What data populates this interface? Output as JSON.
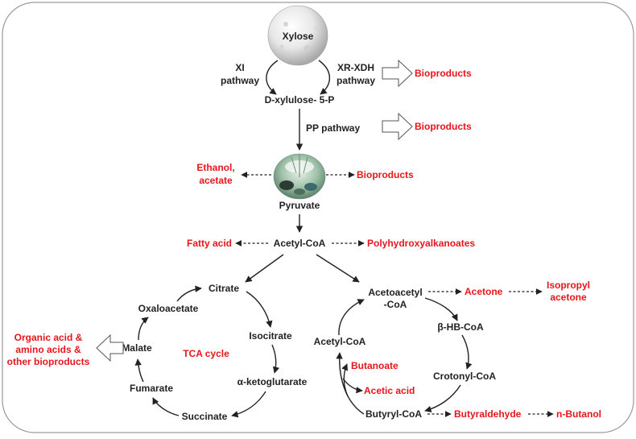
{
  "nodes": {
    "xylose": "Xylose",
    "xi_line1": "XI",
    "xi_line2": "pathway",
    "xr_line1": "XR-XDH",
    "xr_line2": "pathway",
    "xylulose": "D-xylulose- 5-P",
    "pp_pathway": "PP pathway",
    "pyruvate": "Pyruvate",
    "acetyl_coa": "Acetyl-CoA",
    "citrate": "Citrate",
    "oxaloacetate": "Oxaloacetate",
    "isocitrate": "Isocitrate",
    "malate": "Malate",
    "tca_cycle": "TCA cycle",
    "akg": "α-ketoglutarate",
    "fumarate": "Fumarate",
    "succinate": "Succinate",
    "acetoacetyl_line1": "Acetoacetyl",
    "acetoacetyl_line2": "-CoA",
    "bhb_coa": "β-HB-CoA",
    "acetyl_coa_2": "Acetyl-CoA",
    "crotonyl_coa": "Crotonyl-CoA",
    "butyryl_coa": "Butyryl-CoA"
  },
  "products": {
    "bioproducts_xr": "Bioproducts",
    "bioproducts_pp": "Bioproducts",
    "ethanol_line1": "Ethanol,",
    "ethanol_line2": "acetate",
    "bioproducts_pyruvate": "Bioproducts",
    "fatty_acid": "Fatty acid",
    "pha": "Polyhydroxyalkanoates",
    "organic_line1": "Organic acid &",
    "organic_line2": "amino acids &",
    "organic_line3": "other bioproducts",
    "acetone": "Acetone",
    "isopropyl_line1": "Isopropyl",
    "isopropyl_line2": "acetone",
    "butanoate": "Butanoate",
    "acetic_acid": "Acetic acid",
    "butyraldehyde": "Butyraldehyde",
    "n_butanol": "n-Butanol"
  },
  "colors": {
    "product_text": "#e8151b",
    "node_text": "#222222",
    "frame": "#9a9a9a"
  },
  "icons": {
    "xylose_image": "xylose-powder-sphere",
    "microbe_image": "microbial-cells-photo"
  }
}
